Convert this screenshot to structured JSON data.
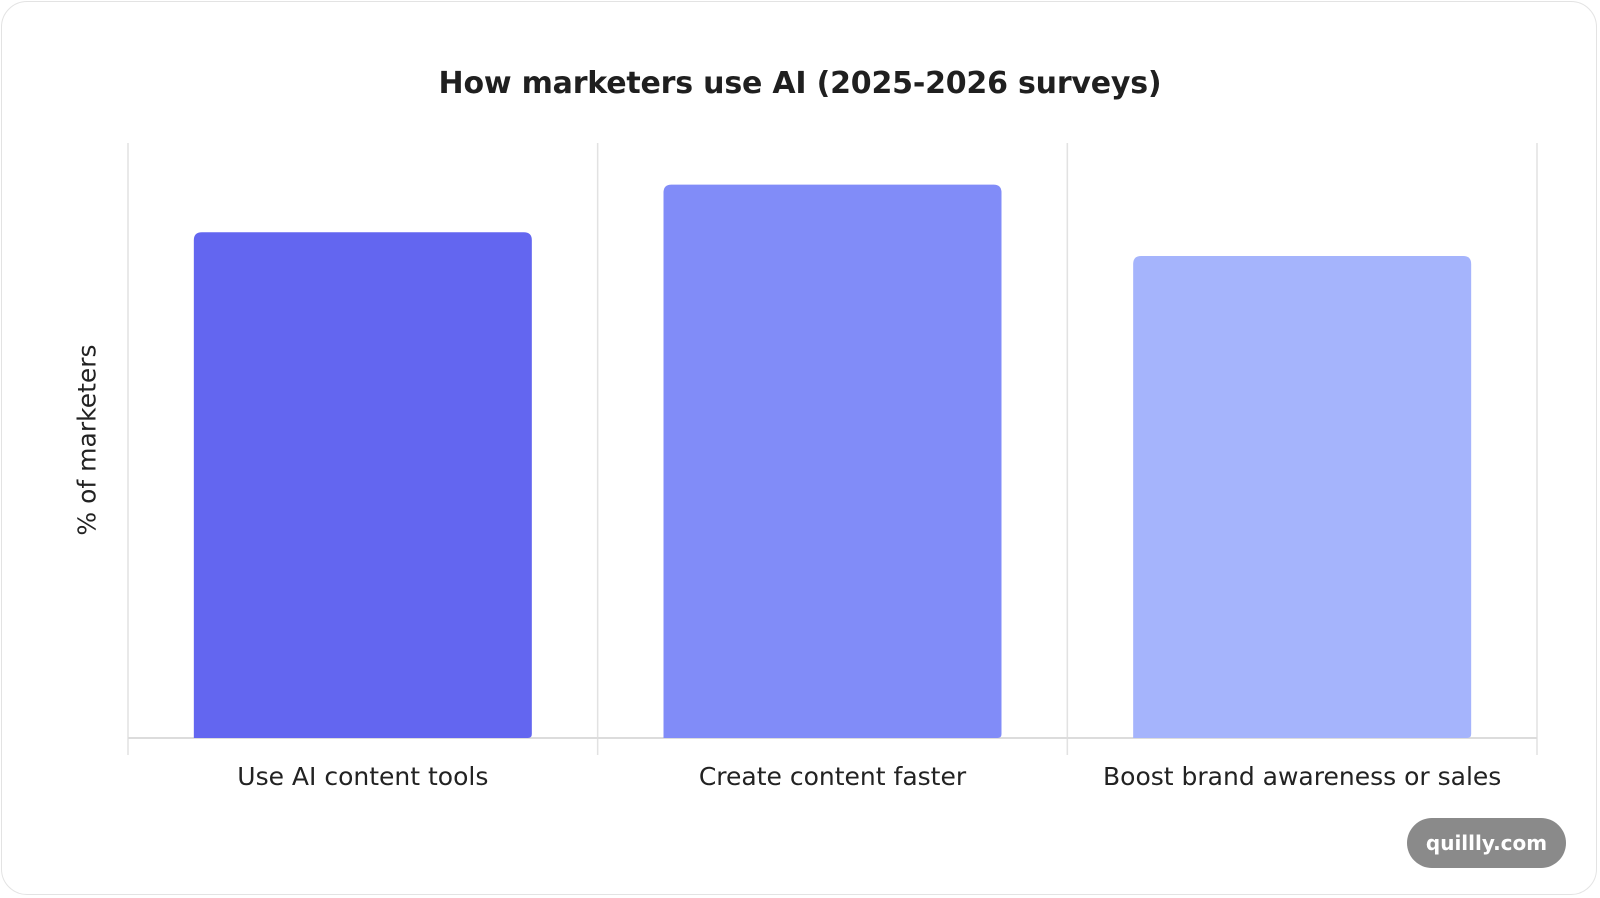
{
  "chart_data": {
    "type": "bar",
    "title": "How marketers use AI (2025-2026 surveys)",
    "xlabel": "",
    "ylabel": "% of marketers",
    "categories": [
      "Use AI content tools",
      "Create content faster",
      "Boost brand awareness or sales"
    ],
    "values": [
      85,
      93,
      81
    ],
    "ylim": [
      0,
      100
    ],
    "colors": [
      "#6366f0",
      "#818cf8",
      "#a5b4fc"
    ],
    "grid": "vertical separators",
    "y_ticks_shown": false
  },
  "watermark": {
    "text": "quillly.com"
  },
  "colors": {
    "grid": "#e2e2e2",
    "axis": "#dcdcdc",
    "text": "#222222"
  }
}
